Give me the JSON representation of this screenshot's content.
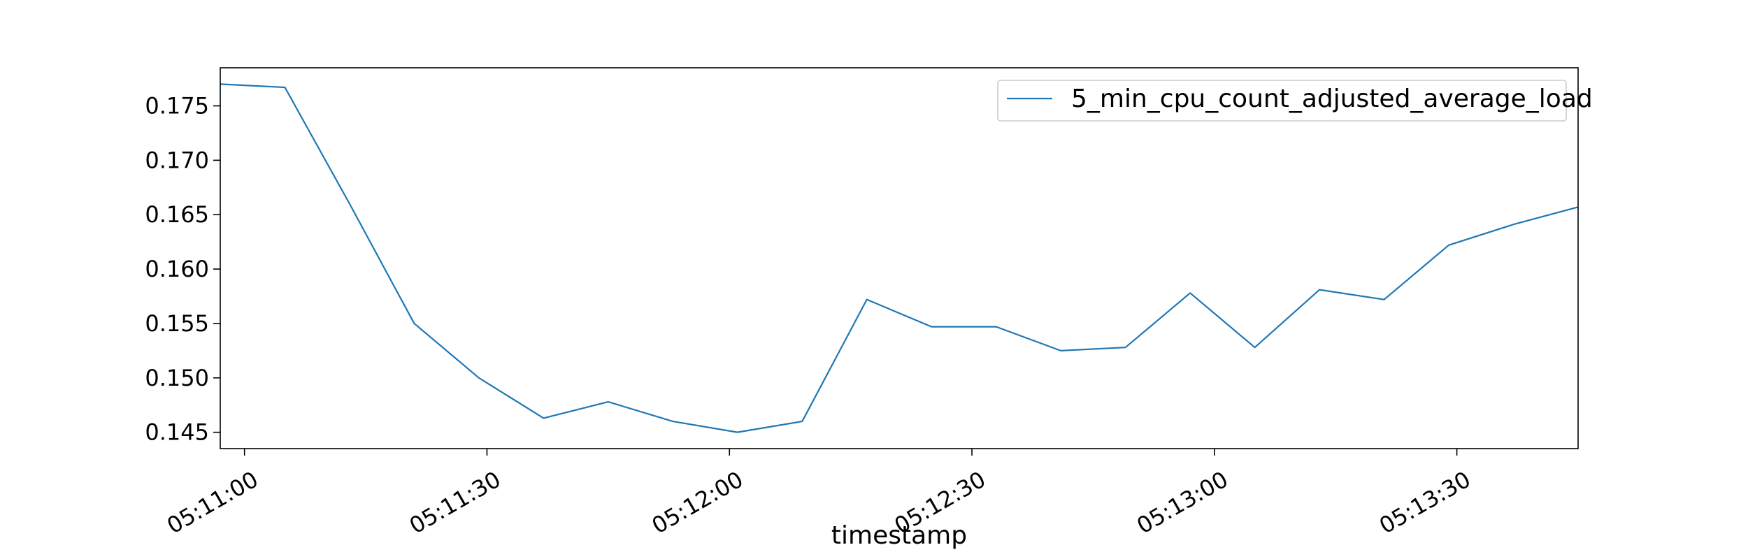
{
  "chart_data": {
    "type": "line",
    "title": "",
    "xlabel": "timestamp",
    "ylabel": "",
    "x": [
      "05:10:57",
      "05:11:05",
      "05:11:13",
      "05:11:21",
      "05:11:29",
      "05:11:37",
      "05:11:45",
      "05:11:53",
      "05:12:01",
      "05:12:09",
      "05:12:17",
      "05:12:25",
      "05:12:33",
      "05:12:41",
      "05:12:49",
      "05:12:57",
      "05:13:05",
      "05:13:13",
      "05:13:21",
      "05:13:29",
      "05:13:37",
      "05:13:45"
    ],
    "series": [
      {
        "name": "5_min_cpu_count_adjusted_average_load",
        "color": "#1f77b4",
        "values": [
          0.177,
          0.1767,
          0.166,
          0.155,
          0.15,
          0.1463,
          0.1478,
          0.146,
          0.145,
          0.146,
          0.1572,
          0.1547,
          0.1547,
          0.1525,
          0.1528,
          0.1578,
          0.1528,
          0.1581,
          0.1572,
          0.1622,
          0.1641,
          0.1657
        ]
      }
    ],
    "xticks": [
      "05:11:00",
      "05:11:30",
      "05:12:00",
      "05:12:30",
      "05:13:00",
      "05:13:30"
    ],
    "yticks": [
      "0.145",
      "0.150",
      "0.155",
      "0.160",
      "0.165",
      "0.170",
      "0.175"
    ],
    "xlim": [
      "05:10:57",
      "05:13:45"
    ],
    "ylim": [
      0.1435,
      0.1785
    ],
    "grid": false,
    "legend_position": "top-right"
  }
}
